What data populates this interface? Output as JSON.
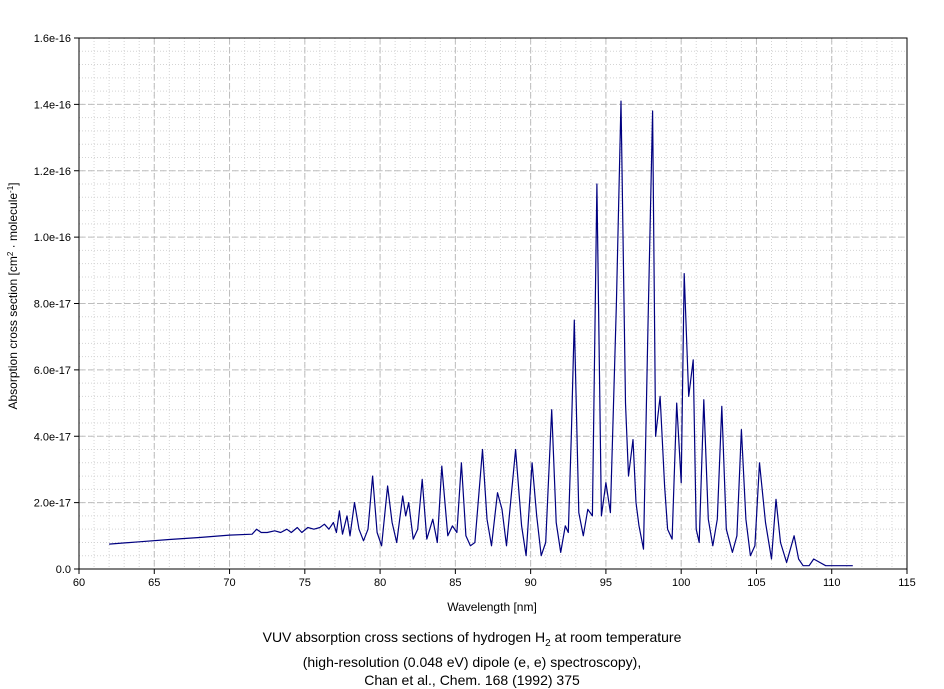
{
  "caption": {
    "line1_pre": "VUV absorption cross sections of hydrogen H",
    "line1_sub": "2",
    "line1_post": " at room temperature",
    "line2": "(high-resolution (0.048 eV) dipole (e, e) spectroscopy),",
    "line3": "Chan et al., Chem. 168 (1992) 375"
  },
  "chart_data": {
    "type": "line",
    "xlabel": "Wavelength [nm]",
    "ylabel_pre": "Absorption cross section [cm",
    "ylabel_sup1": "2",
    "ylabel_mid": " · molecule",
    "ylabel_sup2": "-1",
    "ylabel_post": "]",
    "xlim": [
      60,
      115
    ],
    "ylim": [
      0,
      1.6e-16
    ],
    "x_ticks": [
      60,
      65,
      70,
      75,
      80,
      85,
      90,
      95,
      100,
      105,
      110,
      115
    ],
    "y_ticks": [
      0,
      2e-17,
      4e-17,
      6e-17,
      8e-17,
      1e-16,
      1.2e-16,
      1.4e-16,
      1.6e-16
    ],
    "y_tick_labels": [
      "0.0",
      "2.0e-17",
      "4.0e-17",
      "6.0e-17",
      "8.0e-17",
      "1.0e-16",
      "1.2e-16",
      "1.4e-16",
      "1.6e-16"
    ],
    "grid": true,
    "line_color": "#000080",
    "series": [
      {
        "x": [
          62.0,
          64.0,
          66.0,
          68.0,
          70.0,
          71.5,
          71.8,
          72.1,
          72.5,
          73.0,
          73.4,
          73.8,
          74.1,
          74.5,
          74.8,
          75.2,
          75.6,
          76.0,
          76.3,
          76.6,
          76.9,
          77.1,
          77.3,
          77.5,
          77.8,
          78.0,
          78.3,
          78.6,
          78.9,
          79.2,
          79.5,
          79.8,
          80.1,
          80.5,
          80.8,
          81.1,
          81.5,
          81.7,
          81.9,
          82.2,
          82.5,
          82.8,
          83.1,
          83.5,
          83.8,
          84.1,
          84.5,
          84.8,
          85.1,
          85.4,
          85.7,
          86.0,
          86.3,
          86.8,
          87.1,
          87.4,
          87.8,
          88.1,
          88.4,
          89.0,
          89.4,
          89.7,
          90.1,
          90.4,
          90.7,
          91.0,
          91.4,
          91.7,
          92.0,
          92.3,
          92.5,
          92.7,
          92.9,
          93.2,
          93.5,
          93.8,
          94.1,
          94.4,
          94.7,
          95.0,
          95.3,
          95.7,
          96.0,
          96.3,
          96.5,
          96.8,
          97.0,
          97.2,
          97.5,
          97.8,
          98.1,
          98.3,
          98.6,
          98.9,
          99.1,
          99.4,
          99.7,
          100.0,
          100.2,
          100.5,
          100.8,
          101.0,
          101.2,
          101.5,
          101.8,
          102.1,
          102.4,
          102.7,
          103.0,
          103.4,
          103.7,
          104.0,
          104.3,
          104.6,
          104.9,
          105.2,
          105.6,
          106.0,
          106.3,
          106.6,
          107.0,
          107.5,
          107.8,
          108.1,
          108.5,
          108.8,
          109.2,
          109.6,
          110.0,
          110.5,
          110.9,
          111.2,
          111.4
        ],
        "y": [
          7.5e-18,
          8.2e-18,
          8.9e-18,
          9.5e-18,
          1.02e-17,
          1.05e-17,
          1.2e-17,
          1.1e-17,
          1.1e-17,
          1.15e-17,
          1.1e-17,
          1.2e-17,
          1.1e-17,
          1.25e-17,
          1.1e-17,
          1.25e-17,
          1.2e-17,
          1.25e-17,
          1.35e-17,
          1.2e-17,
          1.4e-17,
          1.1e-17,
          1.75e-17,
          1.05e-17,
          1.6e-17,
          1e-17,
          2e-17,
          1.2e-17,
          8.5e-18,
          1.2e-17,
          2.8e-17,
          1.1e-17,
          7e-18,
          2.5e-17,
          1.4e-17,
          8e-18,
          2.2e-17,
          1.6e-17,
          2e-17,
          9e-18,
          1.2e-17,
          2.7e-17,
          9e-18,
          1.5e-17,
          8e-18,
          3.1e-17,
          1e-17,
          1.3e-17,
          1.1e-17,
          3.2e-17,
          1e-17,
          7e-18,
          8e-18,
          3.6e-17,
          1.5e-17,
          7e-18,
          2.3e-17,
          1.8e-17,
          7e-18,
          3.6e-17,
          1.3e-17,
          4e-18,
          3.2e-17,
          1.6e-17,
          4e-18,
          8e-18,
          4.8e-17,
          1.4e-17,
          5e-18,
          1.3e-17,
          1.1e-17,
          4e-17,
          7.5e-17,
          1.7e-17,
          1e-17,
          1.8e-17,
          1.6e-17,
          1.16e-16,
          1.6e-17,
          2.6e-17,
          1.7e-17,
          8e-17,
          1.41e-16,
          5e-17,
          2.8e-17,
          3.9e-17,
          2e-17,
          1.3e-17,
          6e-18,
          7.5e-17,
          1.38e-16,
          4e-17,
          5.2e-17,
          2.5e-17,
          1.2e-17,
          9e-18,
          5e-17,
          2.6e-17,
          8.9e-17,
          5.2e-17,
          6.3e-17,
          1.2e-17,
          8e-18,
          5.1e-17,
          1.5e-17,
          7e-18,
          1.5e-17,
          4.9e-17,
          1.2e-17,
          5e-18,
          1e-17,
          4.2e-17,
          1.5e-17,
          4e-18,
          7e-18,
          3.2e-17,
          1.4e-17,
          3e-18,
          2.1e-17,
          8e-18,
          2e-18,
          1e-17,
          3e-18,
          1e-18,
          1e-18,
          3e-18,
          2e-18,
          1e-18,
          1e-18,
          1e-18,
          1e-18,
          1e-18,
          1e-18
        ]
      }
    ]
  }
}
